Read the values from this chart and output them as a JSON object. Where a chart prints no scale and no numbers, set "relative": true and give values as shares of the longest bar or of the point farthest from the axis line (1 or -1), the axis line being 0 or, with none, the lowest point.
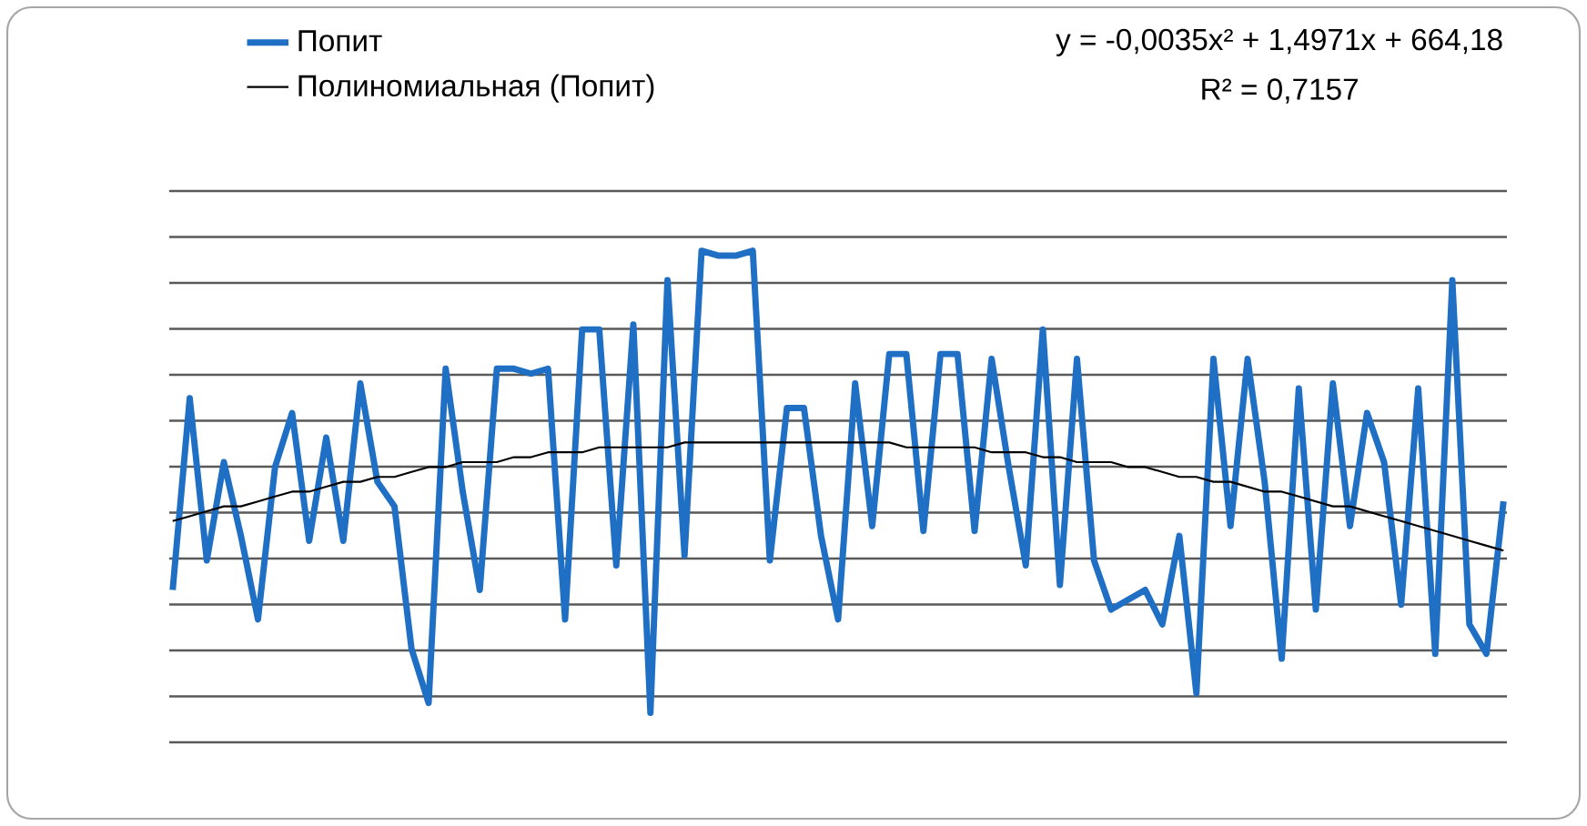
{
  "chart_data": {
    "type": "line",
    "relative": true,
    "grid": "y",
    "legend": "top",
    "marker": "none",
    "line_style": "solid",
    "categories": [
      null,
      null,
      null,
      null,
      null,
      null,
      null,
      null,
      null,
      null,
      null,
      null,
      null,
      null,
      null,
      null,
      null,
      null,
      null,
      null,
      null,
      null,
      null,
      null,
      null,
      null,
      null,
      null,
      null,
      null,
      null,
      null,
      null,
      null,
      null,
      null,
      null,
      null,
      null,
      null,
      null,
      null,
      null,
      null,
      null,
      null,
      null,
      null,
      null,
      null,
      null,
      null,
      null,
      null,
      null,
      null,
      null,
      null,
      null,
      null,
      null,
      null,
      null,
      null,
      null,
      null,
      null,
      null,
      null,
      null,
      null,
      null,
      null,
      null,
      null,
      null,
      null,
      null,
      null
    ],
    "series": [
      {
        "name": "Попит",
        "color": "#1f6fc5",
        "values": [
          0.31,
          0.7,
          0.37,
          0.57,
          0.42,
          0.25,
          0.56,
          0.67,
          0.41,
          0.62,
          0.41,
          0.73,
          0.53,
          0.48,
          0.19,
          0.08,
          0.76,
          0.51,
          0.31,
          0.76,
          0.76,
          0.75,
          0.76,
          0.25,
          0.84,
          0.84,
          0.36,
          0.85,
          0.06,
          0.94,
          0.38,
          1,
          0.99,
          0.99,
          1,
          0.37,
          0.68,
          0.68,
          0.42,
          0.25,
          0.73,
          0.44,
          0.79,
          0.79,
          0.43,
          0.79,
          0.79,
          0.43,
          0.78,
          0.56,
          0.36,
          0.84,
          0.32,
          0.78,
          0.37,
          0.27,
          0.29,
          0.31,
          0.24,
          0.42,
          0.1,
          0.78,
          0.44,
          0.78,
          0.53,
          0.17,
          0.72,
          0.27,
          0.73,
          0.44,
          0.67,
          0.57,
          0.28,
          0.72,
          0.18,
          0.94,
          0.24,
          0.18,
          0.49
        ]
      },
      {
        "name": "Полиномиальная (Попит)",
        "type": "line",
        "color": "#000000",
        "values": [
          0.45,
          0.46,
          0.47,
          0.48,
          0.48,
          0.49,
          0.5,
          0.51,
          0.51,
          0.52,
          0.53,
          0.53,
          0.54,
          0.54,
          0.55,
          0.56,
          0.56,
          0.57,
          0.57,
          0.57,
          0.58,
          0.58,
          0.59,
          0.59,
          0.59,
          0.6,
          0.6,
          0.6,
          0.6,
          0.6,
          0.61,
          0.61,
          0.61,
          0.61,
          0.61,
          0.61,
          0.61,
          0.61,
          0.61,
          0.61,
          0.61,
          0.61,
          0.61,
          0.6,
          0.6,
          0.6,
          0.6,
          0.6,
          0.59,
          0.59,
          0.59,
          0.58,
          0.58,
          0.57,
          0.57,
          0.57,
          0.56,
          0.56,
          0.55,
          0.54,
          0.54,
          0.53,
          0.53,
          0.52,
          0.51,
          0.51,
          0.5,
          0.49,
          0.48,
          0.48,
          0.47,
          0.46,
          0.45,
          0.44,
          0.43,
          0.42,
          0.41,
          0.4,
          0.39
        ]
      }
    ],
    "annotations": [
      "y = -0,0035x² + 1,4971x + 664,18",
      "R² = 0,7157"
    ]
  }
}
